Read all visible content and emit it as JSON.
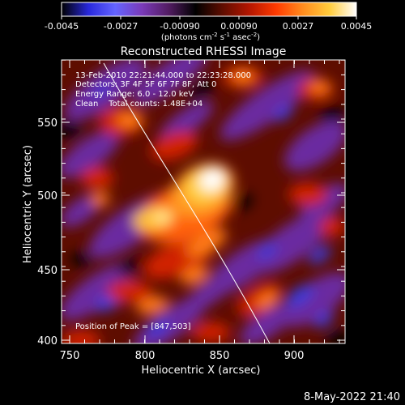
{
  "colorbar": {
    "ticks": [
      "-0.0045",
      "-0.0027",
      "-0.00090",
      "0.00090",
      "0.0027",
      "0.0045"
    ],
    "unit_prefix": "(photons cm",
    "unit_sup1": "-2",
    "unit_mid1": " s",
    "unit_sup2": "-1",
    "unit_mid2": " asec",
    "unit_sup3": "-2",
    "unit_suffix": ")"
  },
  "title": "Reconstructed RHESSI Image",
  "info": {
    "time_range": "13-Feb-2010 22:21:44.000 to 22:23:28.000",
    "detectors": "Detectors: 3F 4F 5F 6F 7F 8F, Att 0",
    "energy": "Energy Range: 6.0 - 12.0 keV",
    "clean": "Clean    Total counts: 1.48E+04",
    "peak": "Position of Peak = [847,503]"
  },
  "axes": {
    "xlabel": "Heliocentric X (arcsec)",
    "ylabel": "Heliocentric Y (arcsec)",
    "xticks": [
      "750",
      "800",
      "850",
      "900"
    ],
    "yticks": [
      "400",
      "450",
      "500",
      "550"
    ]
  },
  "footer": {
    "timestamp": "8-May-2022 21:40"
  },
  "colors": {
    "colormap": [
      "#000000",
      "#2828dc",
      "#6464ff",
      "#7a3ab8",
      "#521c62",
      "#000000",
      "#5e0d00",
      "#b41600",
      "#ff3a00",
      "#ff8c1e",
      "#ffcc3c",
      "#ffffff"
    ],
    "background": "#000000",
    "text": "#ffffff"
  }
}
